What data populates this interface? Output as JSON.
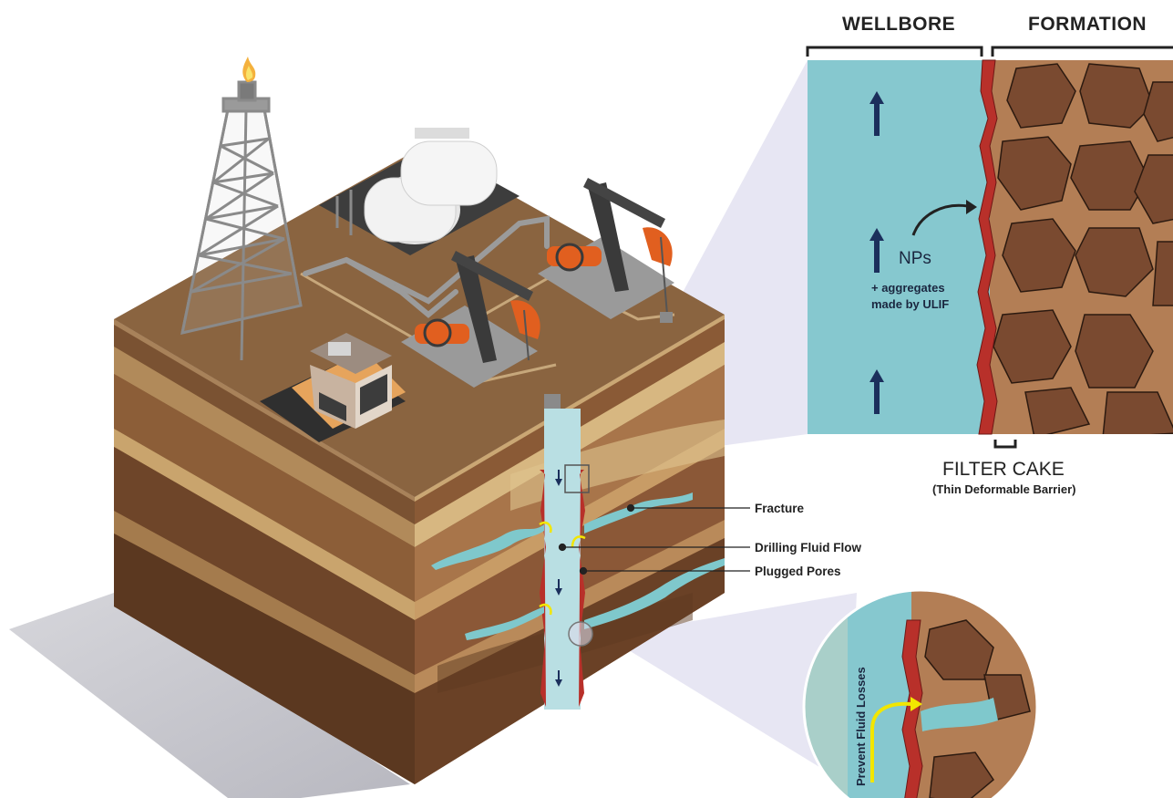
{
  "labels": {
    "wellbore": "WELLBORE",
    "formation": "FORMATION",
    "nps": "NPs",
    "aggregates_line1": "+ aggregates",
    "aggregates_line2": "made by ULIF",
    "filter_cake": "FILTER CAKE",
    "filter_cake_sub": "(Thin Deformable Barrier)",
    "fracture": "Fracture",
    "drilling_fluid_flow": "Drilling Fluid Flow",
    "plugged_pores": "Plugged Pores",
    "prevent_fluid_losses": "Prevent Fluid Losses"
  },
  "colors": {
    "wellbore_fluid": "#86c8cf",
    "formation_rock": "#b37e55",
    "rock_grain": "#7a4a30",
    "filter_cake": "#b8302a",
    "ground_surface": "#8a6440",
    "flow_arrow": "#1b2f5c",
    "loss_arrow": "#f2e600"
  }
}
